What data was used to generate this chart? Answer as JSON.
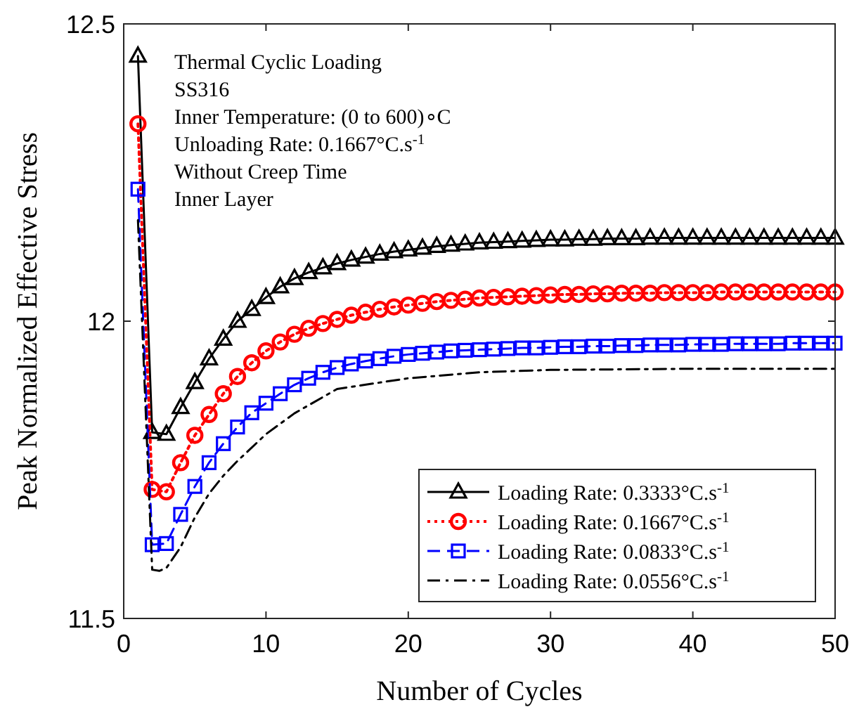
{
  "chart_data": {
    "type": "line",
    "xlabel": "Number of Cycles",
    "ylabel": "Peak Normalized Effective Stress",
    "xlim": [
      0,
      50
    ],
    "ylim": [
      11.5,
      12.5
    ],
    "xticks": [
      0,
      10,
      20,
      30,
      40,
      50
    ],
    "yticks": [
      11.5,
      12,
      12.5
    ],
    "grid": false,
    "legend": "bottom right",
    "annotations": [
      "Thermal Cyclic Loading",
      "SS316",
      "Inner Temperature: (0 to 600)∘C",
      "Unloading Rate: 0.1667°C.s$^{-1}$",
      "Without Creep Time",
      "Inner Layer"
    ],
    "series": [
      {
        "name": "Loading Rate: 0.3333°C.s$^{-1}$",
        "color": "#000000",
        "marker": "triangle",
        "line_style": "solid",
        "x": [
          1,
          2,
          3,
          4,
          5,
          6,
          7,
          8,
          9,
          10,
          11,
          12,
          13,
          14,
          15,
          16,
          17,
          18,
          19,
          20,
          21,
          22,
          23,
          24,
          25,
          26,
          27,
          28,
          29,
          30,
          31,
          32,
          33,
          34,
          35,
          36,
          37,
          38,
          39,
          40,
          41,
          42,
          43,
          44,
          45,
          46,
          47,
          48,
          49,
          50
        ],
        "values": [
          12.446,
          11.813,
          11.81,
          11.855,
          11.897,
          11.937,
          11.97,
          12.0,
          12.02,
          12.04,
          12.058,
          12.072,
          12.082,
          12.09,
          12.097,
          12.103,
          12.108,
          12.113,
          12.117,
          12.12,
          12.123,
          12.126,
          12.128,
          12.13,
          12.132,
          12.133,
          12.134,
          12.135,
          12.136,
          12.137,
          12.137,
          12.138,
          12.138,
          12.139,
          12.139,
          12.139,
          12.14,
          12.14,
          12.14,
          12.14,
          12.14,
          12.14,
          12.14,
          12.14,
          12.14,
          12.14,
          12.14,
          12.14,
          12.14,
          12.14
        ]
      },
      {
        "name": "Loading Rate: 0.1667°C.s$^{-1}$",
        "color": "#ff0000",
        "marker": "circle",
        "line_style": "dotted",
        "x": [
          1,
          2,
          3,
          4,
          5,
          6,
          7,
          8,
          9,
          10,
          11,
          12,
          13,
          14,
          15,
          16,
          17,
          18,
          19,
          20,
          21,
          22,
          23,
          24,
          25,
          26,
          27,
          28,
          29,
          30,
          31,
          32,
          33,
          34,
          35,
          36,
          37,
          38,
          39,
          40,
          41,
          42,
          43,
          44,
          45,
          46,
          47,
          48,
          49,
          50
        ],
        "values": [
          12.332,
          11.717,
          11.713,
          11.762,
          11.808,
          11.843,
          11.878,
          11.907,
          11.93,
          11.95,
          11.965,
          11.978,
          11.988,
          11.996,
          12.003,
          12.01,
          12.015,
          12.02,
          12.024,
          12.027,
          12.03,
          12.033,
          12.035,
          12.037,
          12.039,
          12.04,
          12.041,
          12.042,
          12.043,
          12.044,
          12.045,
          12.045,
          12.046,
          12.046,
          12.047,
          12.047,
          12.047,
          12.048,
          12.048,
          12.048,
          12.048,
          12.049,
          12.049,
          12.049,
          12.049,
          12.049,
          12.049,
          12.049,
          12.049,
          12.049
        ]
      },
      {
        "name": "Loading Rate: 0.0833°C.s$^{-1}$",
        "color": "#0000ff",
        "marker": "square",
        "line_style": "dashed",
        "x": [
          1,
          2,
          3,
          4,
          5,
          6,
          7,
          8,
          9,
          10,
          11,
          12,
          13,
          14,
          15,
          16,
          17,
          18,
          19,
          20,
          21,
          22,
          23,
          24,
          25,
          26,
          27,
          28,
          29,
          30,
          31,
          32,
          33,
          34,
          35,
          36,
          37,
          38,
          39,
          40,
          41,
          42,
          43,
          44,
          45,
          46,
          47,
          48,
          49,
          50
        ],
        "values": [
          12.222,
          11.624,
          11.626,
          11.675,
          11.722,
          11.762,
          11.794,
          11.822,
          11.846,
          11.862,
          11.878,
          11.893,
          11.904,
          11.914,
          11.922,
          11.928,
          11.933,
          11.937,
          11.941,
          11.944,
          11.946,
          11.948,
          11.95,
          11.951,
          11.952,
          11.953,
          11.954,
          11.955,
          11.955,
          11.956,
          11.957,
          11.957,
          11.958,
          11.958,
          11.959,
          11.959,
          11.96,
          11.96,
          11.96,
          11.961,
          11.961,
          11.961,
          11.962,
          11.962,
          11.962,
          11.962,
          11.963,
          11.963,
          11.963,
          11.963
        ]
      },
      {
        "name": "Loading Rate: 0.0556°C.s$^{-1}$",
        "color": "#000000",
        "marker": "none",
        "line_style": "dashdot",
        "x": [
          1,
          2,
          2.5,
          3,
          4,
          5,
          6,
          7,
          8,
          10,
          12,
          15,
          20,
          25,
          30,
          40,
          50
        ],
        "values": [
          12.17,
          11.582,
          11.58,
          11.585,
          11.62,
          11.67,
          11.71,
          11.74,
          11.765,
          11.81,
          11.845,
          11.886,
          11.904,
          11.914,
          11.918,
          11.92,
          11.92
        ]
      }
    ]
  }
}
